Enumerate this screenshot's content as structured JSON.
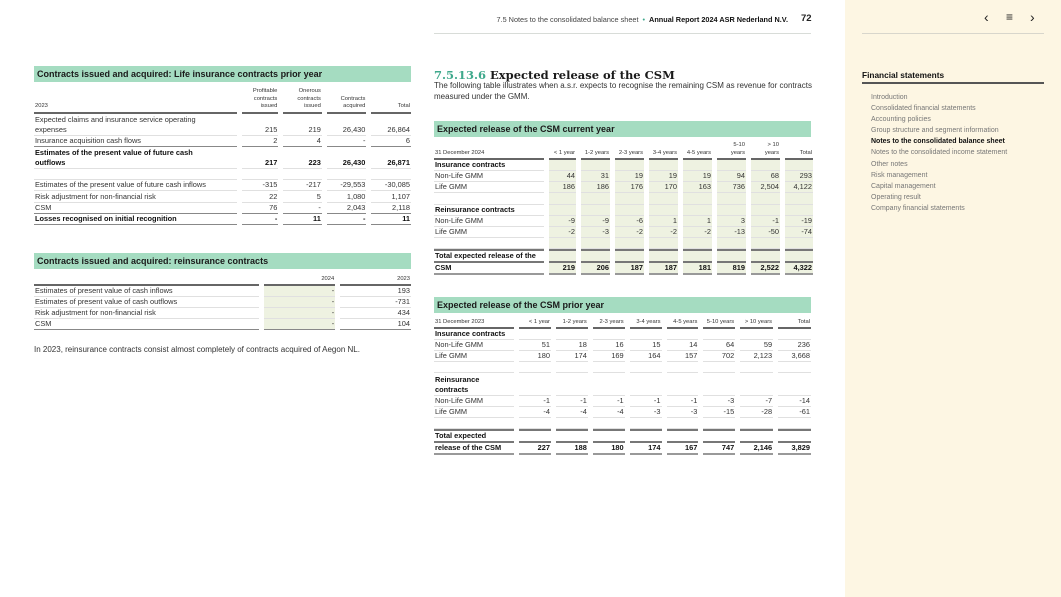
{
  "header": {
    "section": "7.5 Notes to the consolidated balance sheet",
    "report": "Annual Report 2024 ASR Nederland N.V.",
    "page": "72",
    "prev_icon": "chevron-left-icon",
    "menu_icon": "menu-icon",
    "next_icon": "chevron-right-icon"
  },
  "colors": {
    "header_green": "#a5dcc1",
    "shade": "#eef2e1",
    "accent": "#3fa98c",
    "sidebar_bg": "#fdf6e3"
  },
  "life_table": {
    "title": "Contracts issued and acquired: Life insurance contracts prior year",
    "headers": [
      "2023",
      "Profitable contracts issued",
      "Onerous contracts issued",
      "Contracts acquired",
      "Total"
    ],
    "rows": [
      {
        "label": "Expected claims and insurance service operating",
        "values": [
          "",
          "",
          "",
          ""
        ],
        "style": "plain"
      },
      {
        "label": "expenses",
        "values": [
          "215",
          "219",
          "26,430",
          "26,864"
        ]
      },
      {
        "label": "Insurance acquisition cash flows",
        "values": [
          "2",
          "4",
          "-",
          "6"
        ],
        "style": "under"
      },
      {
        "label": "Estimates of the present value of future cash",
        "values": [
          "",
          "",
          "",
          ""
        ],
        "style": "bold plain"
      },
      {
        "label": "outflows",
        "values": [
          "217",
          "223",
          "26,430",
          "26,871"
        ],
        "style": "bold"
      },
      {
        "label": "",
        "values": [
          "",
          "",
          "",
          ""
        ]
      },
      {
        "label": "Estimates of the present value of future cash inflows",
        "values": [
          "-315",
          "-217",
          "-29,553",
          "-30,085"
        ]
      },
      {
        "label": "Risk adjustment for non-financial risk",
        "values": [
          "22",
          "5",
          "1,080",
          "1,107"
        ]
      },
      {
        "label": "CSM",
        "values": [
          "76",
          "-",
          "2,043",
          "2,118"
        ],
        "style": "under"
      },
      {
        "label": "Losses recognised on initial recognition",
        "values": [
          "-",
          "11",
          "-",
          "11"
        ],
        "style": "bold under"
      }
    ]
  },
  "reins_table": {
    "title": "Contracts issued and acquired: reinsurance contracts",
    "headers": [
      "",
      "2024",
      "2023"
    ],
    "rows": [
      {
        "label": "Estimates of present value of cash inflows",
        "values": [
          "-",
          "193"
        ]
      },
      {
        "label": "Estimates of present value of cash outflows",
        "values": [
          "-",
          "-731"
        ]
      },
      {
        "label": "Risk adjustment for non-financial risk",
        "values": [
          "-",
          "434"
        ]
      },
      {
        "label": "CSM",
        "values": [
          "-",
          "104"
        ],
        "style": "under"
      }
    ]
  },
  "note": "In 2023, reinsurance contracts consist almost completely of contracts acquired of Aegon NL.",
  "section": {
    "number": "7.5.13.6",
    "title": "Expected release of the CSM",
    "intro": "The following table illustrates when a.s.r. expects to recognise the remaining CSM as revenue for contracts measured under the GMM."
  },
  "csm_current": {
    "title": "Expected release of the CSM current year",
    "headers": [
      "31 December 2024",
      "< 1 year",
      "1-2 years",
      "2-3 years",
      "3-4 years",
      "4-5 years",
      "5-10 years",
      "> 10 years",
      "Total"
    ],
    "rows": [
      {
        "label": "Insurance contracts",
        "values": [
          "",
          "",
          "",
          "",
          "",
          "",
          "",
          ""
        ],
        "style": "bold"
      },
      {
        "label": "Non-Life GMM",
        "values": [
          "44",
          "31",
          "19",
          "19",
          "19",
          "94",
          "68",
          "293"
        ]
      },
      {
        "label": "Life GMM",
        "values": [
          "186",
          "186",
          "176",
          "170",
          "163",
          "736",
          "2,504",
          "4,122"
        ]
      },
      {
        "label": "",
        "values": [
          "",
          "",
          "",
          "",
          "",
          "",
          "",
          ""
        ]
      },
      {
        "label": "Reinsurance contracts",
        "values": [
          "",
          "",
          "",
          "",
          "",
          "",
          "",
          ""
        ],
        "style": "bold"
      },
      {
        "label": "Non-Life GMM",
        "values": [
          "-9",
          "-9",
          "-6",
          "1",
          "1",
          "3",
          "-1",
          "-19"
        ]
      },
      {
        "label": "Life GMM",
        "values": [
          "-2",
          "-3",
          "-2",
          "-2",
          "-2",
          "-13",
          "-50",
          "-74"
        ]
      },
      {
        "label": "",
        "values": [
          "",
          "",
          "",
          "",
          "",
          "",
          "",
          ""
        ]
      },
      {
        "label": "Total expected release of the",
        "values": [
          "",
          "",
          "",
          "",
          "",
          "",
          "",
          ""
        ],
        "style": "total-top"
      },
      {
        "label": "CSM",
        "values": [
          "219",
          "206",
          "187",
          "187",
          "181",
          "819",
          "2,522",
          "4,322"
        ],
        "style": "total-bot"
      }
    ]
  },
  "csm_prior": {
    "title": "Expected release of the CSM prior year",
    "headers": [
      "31 December 2023",
      "< 1 year",
      "1-2 years",
      "2-3 years",
      "3-4 years",
      "4-5 years",
      "5-10 years",
      "> 10 years",
      "Total"
    ],
    "rows": [
      {
        "label": "Insurance contracts",
        "values": [
          "",
          "",
          "",
          "",
          "",
          "",
          "",
          ""
        ],
        "style": "bold"
      },
      {
        "label": "Non-Life GMM",
        "values": [
          "51",
          "18",
          "16",
          "15",
          "14",
          "64",
          "59",
          "236"
        ]
      },
      {
        "label": "Life GMM",
        "values": [
          "180",
          "174",
          "169",
          "164",
          "157",
          "702",
          "2,123",
          "3,668"
        ]
      },
      {
        "label": "",
        "values": [
          "",
          "",
          "",
          "",
          "",
          "",
          "",
          ""
        ]
      },
      {
        "label": "Reinsurance",
        "values": [
          "",
          "",
          "",
          "",
          "",
          "",
          "",
          ""
        ],
        "style": "bold plain"
      },
      {
        "label": "contracts",
        "values": [
          "",
          "",
          "",
          "",
          "",
          "",
          "",
          ""
        ],
        "style": "bold"
      },
      {
        "label": "Non-Life GMM",
        "values": [
          "-1",
          "-1",
          "-1",
          "-1",
          "-1",
          "-3",
          "-7",
          "-14"
        ]
      },
      {
        "label": "Life GMM",
        "values": [
          "-4",
          "-4",
          "-4",
          "-3",
          "-3",
          "-15",
          "-28",
          "-61"
        ]
      },
      {
        "label": "",
        "values": [
          "",
          "",
          "",
          "",
          "",
          "",
          "",
          ""
        ]
      },
      {
        "label": "Total expected",
        "values": [
          "",
          "",
          "",
          "",
          "",
          "",
          "",
          ""
        ],
        "style": "total-top"
      },
      {
        "label": "release of the CSM",
        "values": [
          "227",
          "188",
          "180",
          "174",
          "167",
          "747",
          "2,146",
          "3,829"
        ],
        "style": "total-bot"
      }
    ]
  },
  "sidebar": {
    "title": "Financial statements",
    "items": [
      "Introduction",
      "Consolidated financial statements",
      "Accounting policies",
      "Group structure and segment information",
      "Notes to the consolidated balance sheet",
      "Notes to the consolidated income statement",
      "Other notes",
      "Risk management",
      "Capital management",
      "Operating result",
      "Company financial statements"
    ],
    "current": 4
  }
}
